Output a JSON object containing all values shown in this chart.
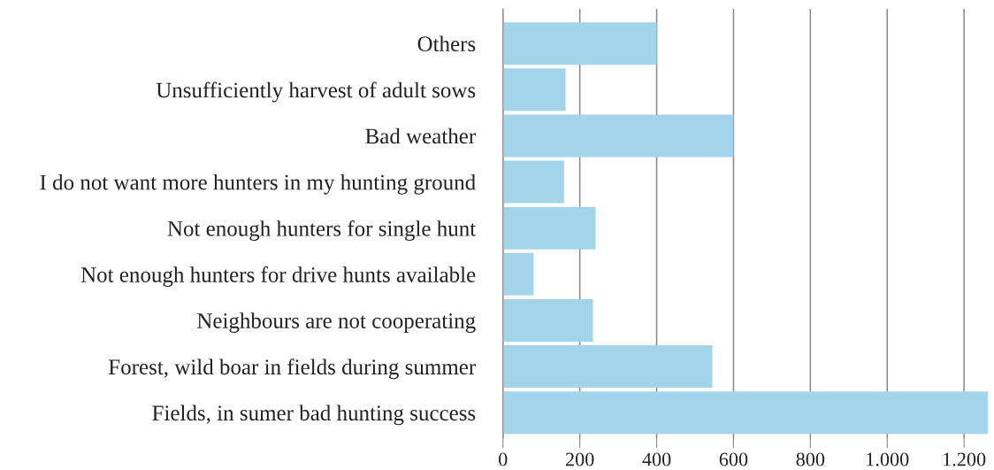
{
  "chart_data": {
    "type": "bar",
    "orientation": "horizontal",
    "categories": [
      "Others",
      "Unsufficiently harvest of adult sows",
      "Bad weather",
      "I do not want more hunters in my hunting ground",
      "Not enough hunters for single hunt",
      "Not enough hunters for drive hunts available",
      "Neighbours are not cooperating",
      "Forest, wild boar in fields during summer",
      "Fields, in sumer bad hunting success"
    ],
    "values": [
      400,
      163,
      600,
      159,
      241,
      80,
      234,
      545,
      1262
    ],
    "color": "#a3d4ea",
    "xlim": [
      0,
      1265
    ],
    "xticks": [
      0,
      200,
      400,
      600,
      800,
      {
        "value": 1000,
        "label": "1.000"
      },
      {
        "value": 1200,
        "label": "1.200"
      }
    ],
    "grid": "x"
  }
}
